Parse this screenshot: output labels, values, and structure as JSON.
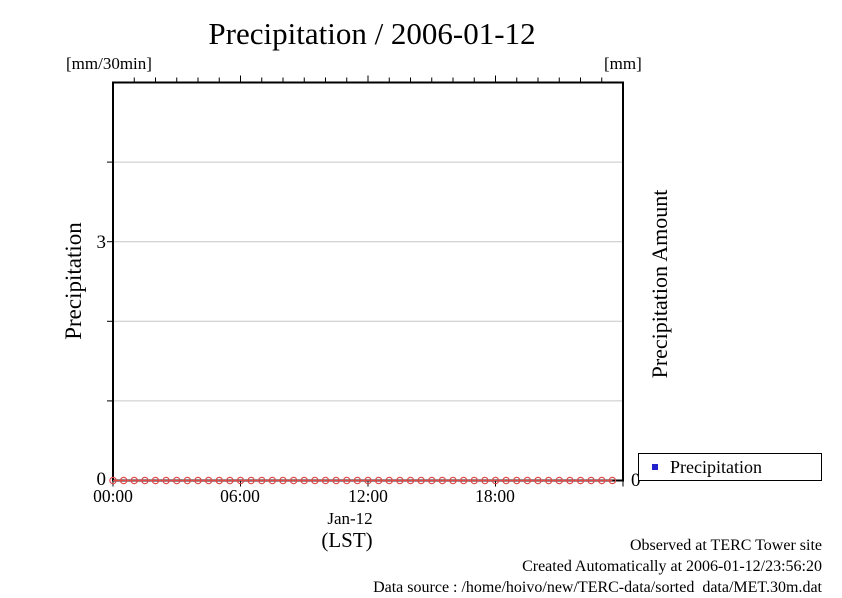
{
  "title": "Precipitation / 2006-01-12",
  "axes": {
    "left_unit": "[mm/30min]",
    "right_unit": "[mm]",
    "left_label": "Precipitation",
    "right_label": "Precipitation Amount",
    "left_tick_3": "3",
    "left_tick_0": "0",
    "right_tick_0": "0"
  },
  "x_axis": {
    "tick_labels": [
      "00:00",
      "06:00",
      "12:00",
      "18:00"
    ],
    "date_label": "Jan-12",
    "tz_label": "(LST)"
  },
  "legend": {
    "items": [
      {
        "label": "Precipitation",
        "marker_color": "#2222cc",
        "marker": "square"
      }
    ]
  },
  "footer": {
    "line1": "Observed at TERC Tower site",
    "line2": "Created Automatically at 2006-01-12/23:56:20",
    "line3": "Data source : /home/hoivo/new/TERC-data/sorted  data/MET.30m.dat"
  },
  "colors": {
    "series": "#e04848",
    "grid": "#c6c6c6",
    "frame": "#000000",
    "legend_marker": "#2222cc"
  },
  "chart_data": {
    "type": "line",
    "title": "Precipitation / 2006-01-12",
    "xlabel": "Jan-12 (LST)",
    "ylabel_left": "Precipitation [mm/30min]",
    "ylabel_right": "Precipitation Amount [mm]",
    "x_tick_labels": [
      "00:00",
      "06:00",
      "12:00",
      "18:00"
    ],
    "x_range_hours": [
      0,
      24
    ],
    "x_minor_tick_hours": 1,
    "x_major_tick_hours": 6,
    "ylim_left": [
      0,
      5
    ],
    "y_gridlines": [
      1,
      2,
      3,
      4
    ],
    "y_labeled_ticks": [
      0,
      3
    ],
    "right_axis_labeled_ticks": [
      0
    ],
    "grid": true,
    "legend_position": "outside-bottom-right",
    "series": [
      {
        "name": "Precipitation",
        "marker": "open-circle",
        "color": "#e04848",
        "interval_minutes": 30,
        "start_hour": 0,
        "values": [
          0,
          0,
          0,
          0,
          0,
          0,
          0,
          0,
          0,
          0,
          0,
          0,
          0,
          0,
          0,
          0,
          0,
          0,
          0,
          0,
          0,
          0,
          0,
          0,
          0,
          0,
          0,
          0,
          0,
          0,
          0,
          0,
          0,
          0,
          0,
          0,
          0,
          0,
          0,
          0,
          0,
          0,
          0,
          0,
          0,
          0,
          0,
          0
        ]
      }
    ]
  }
}
